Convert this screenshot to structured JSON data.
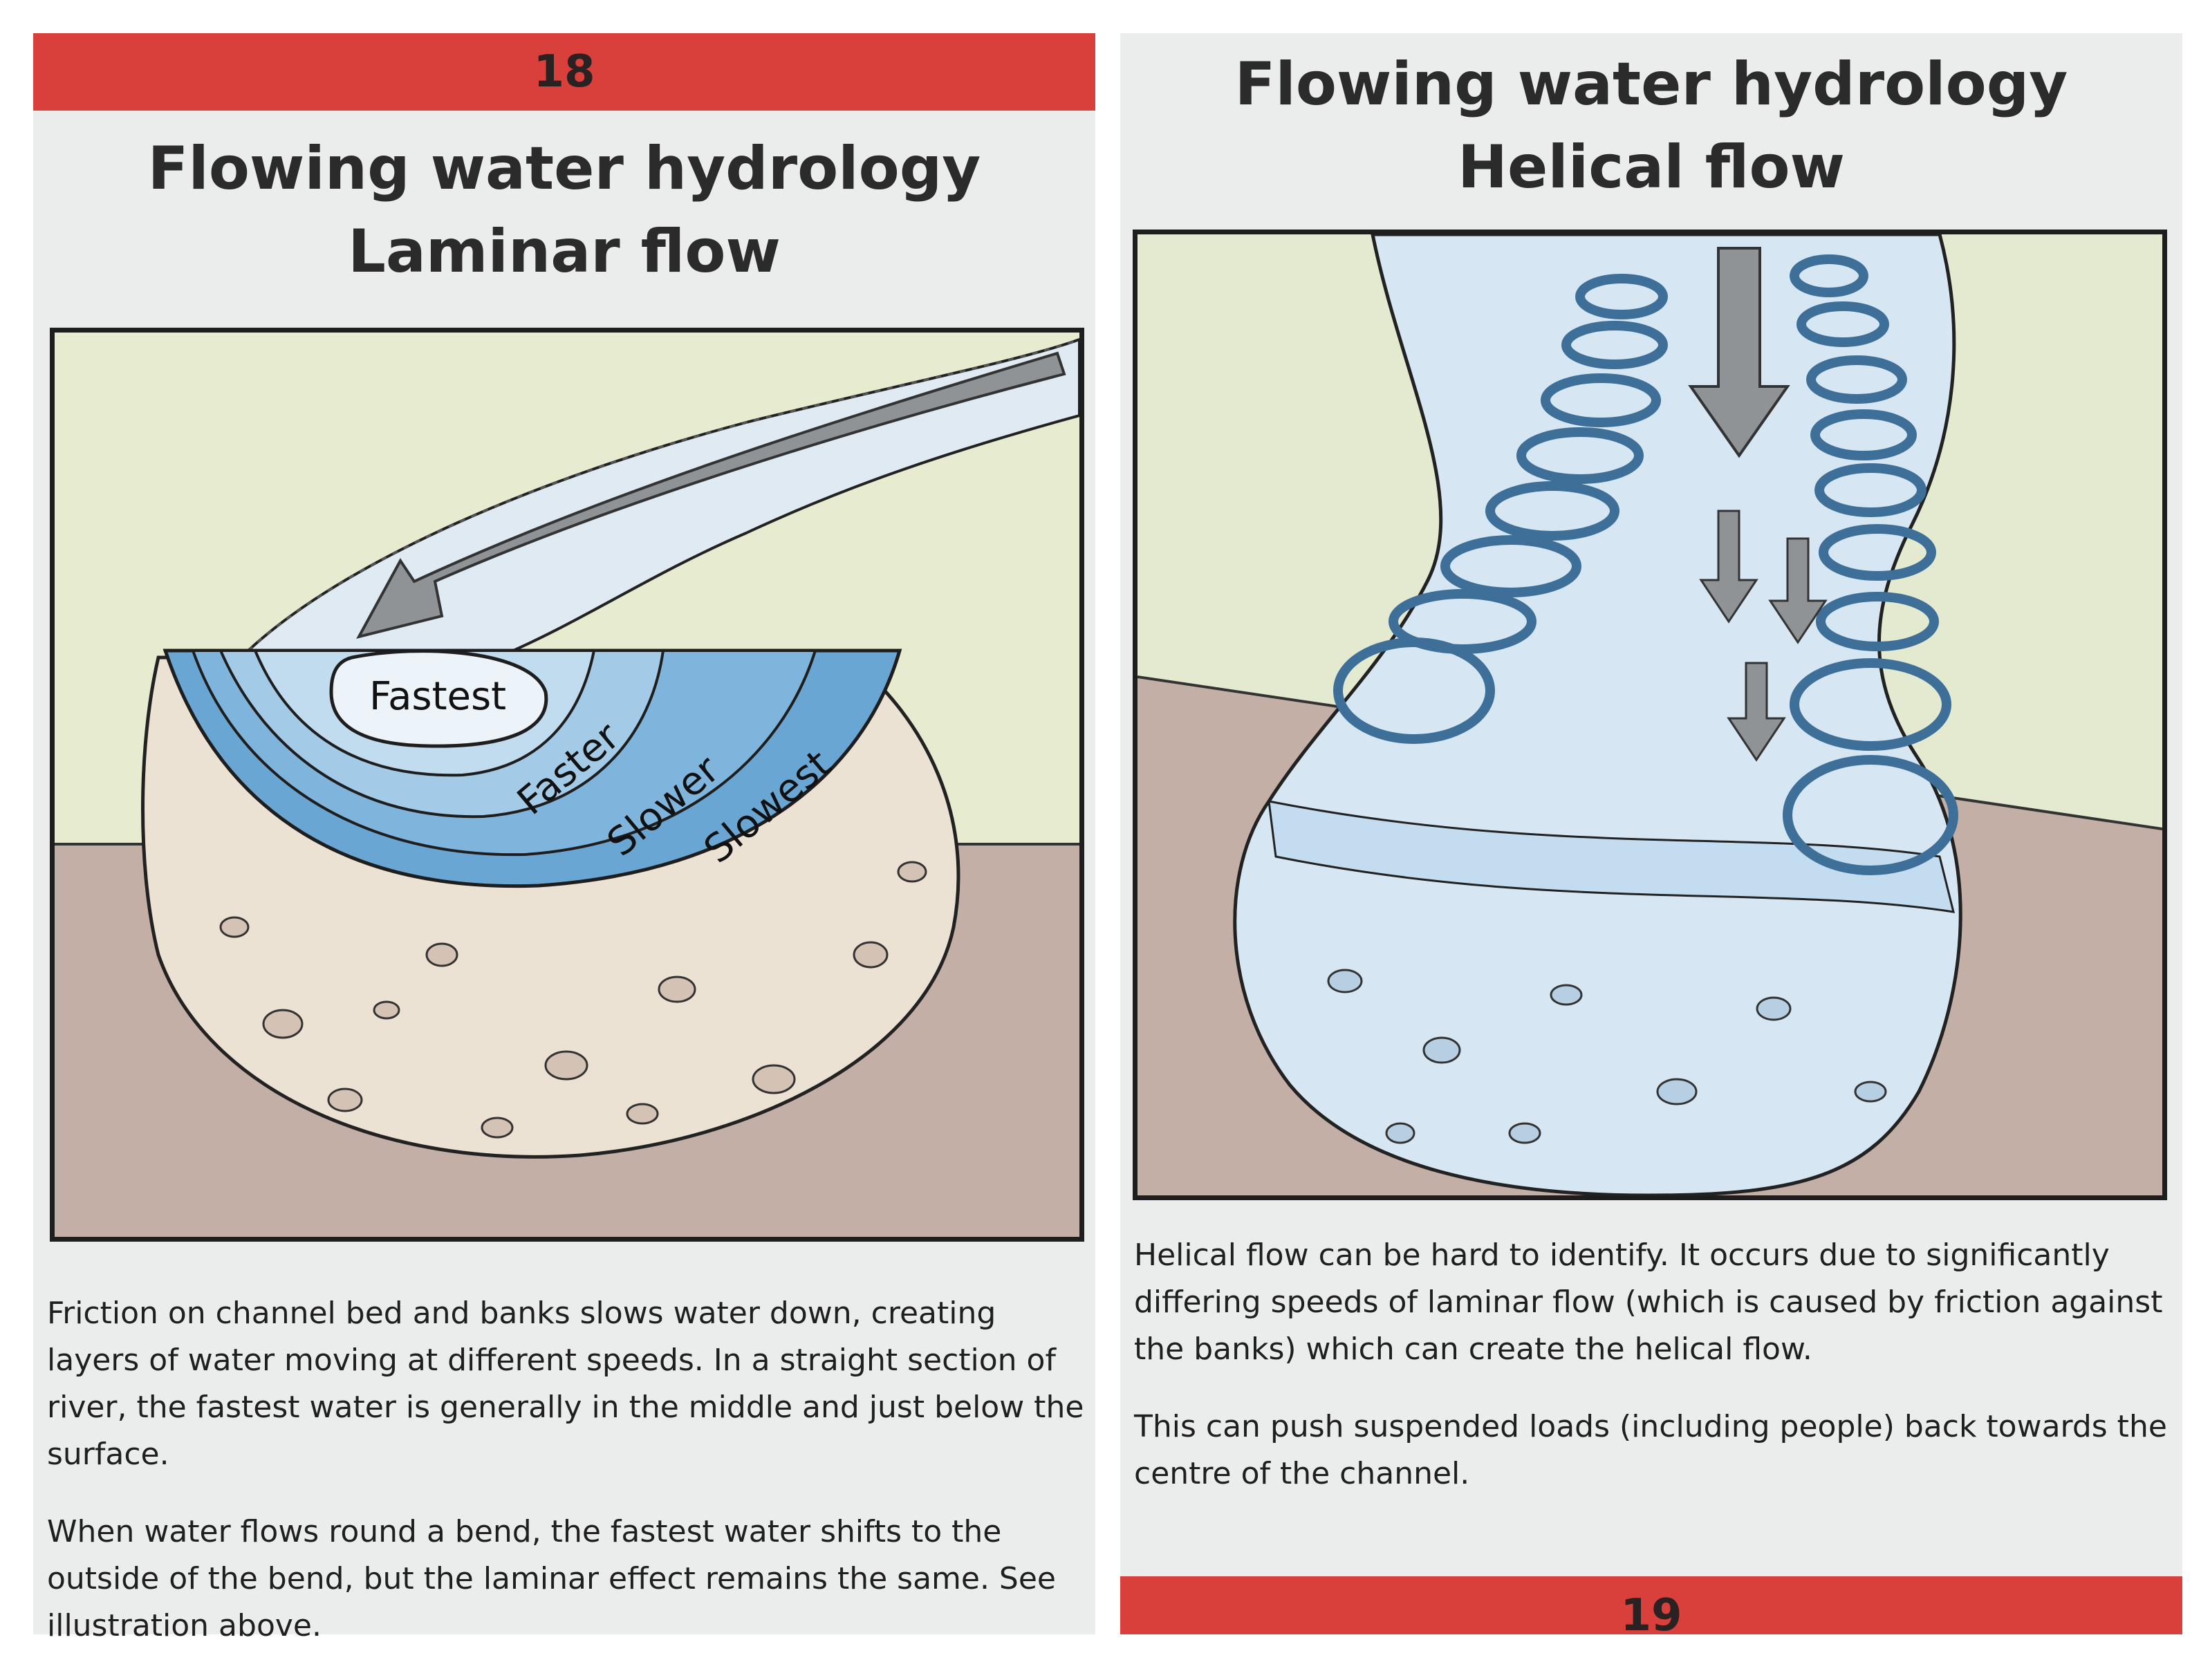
{
  "left_page": {
    "page_number": "18",
    "title_line1": "Flowing water hydrology",
    "title_line2": "Laminar flow",
    "illustration": {
      "labels": [
        "Fastest",
        "Faster",
        "Slower",
        "Slowest"
      ]
    },
    "paragraphs": [
      "Friction on channel bed and banks slows water down, creating layers of water moving at different speeds. In a straight section of river, the fastest water is generally in the middle and just below the surface.",
      "When water flows round a bend, the fastest water shifts to the outside of the bend, but the laminar effect remains the same. See illustration above."
    ]
  },
  "right_page": {
    "page_number": "19",
    "title_line1": "Flowing water hydrology",
    "title_line2": "Helical flow",
    "paragraphs": [
      "Helical flow can be hard to identify.  It occurs due to significantly differing speeds of laminar flow (which is caused by friction against the banks) which can create the helical flow.",
      "This can push suspended loads (including people) back towards the centre of the channel."
    ]
  },
  "colors": {
    "banner_red": "#d9403c",
    "page_bg": "#ebecec",
    "water_blue": "#6aa6d4",
    "grass": "#e6ebcf",
    "soil": "#c9b5a8"
  }
}
